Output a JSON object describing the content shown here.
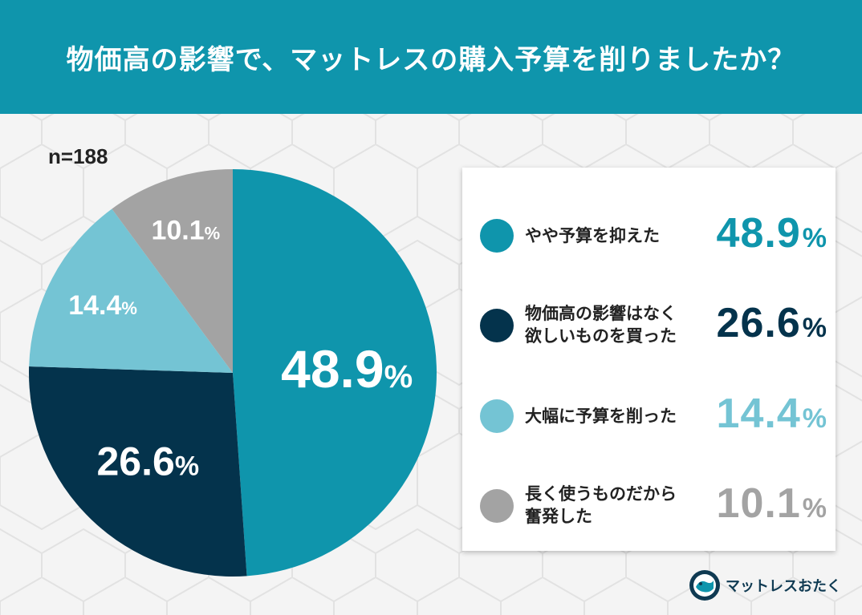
{
  "header": {
    "title": "物価高の影響で、マットレスの購入予算を削りましたか？"
  },
  "sample_size": "n=188",
  "chart_data": {
    "type": "pie",
    "title": "物価高の影響で、マットレスの購入予算を削りましたか？",
    "slices": [
      {
        "label": "やや予算を抑えた",
        "value": 48.9,
        "color": "#0f95ac"
      },
      {
        "label": "物価高の影響はなく欲しいものを買った",
        "value": 26.6,
        "color": "#04334c"
      },
      {
        "label": "大幅に予算を削った",
        "value": 14.4,
        "color": "#74c4d4"
      },
      {
        "label": "長く使うものだから奮発した",
        "value": 10.1,
        "color": "#a3a3a3"
      }
    ],
    "unit": "%",
    "legend_position": "right"
  },
  "pie_labels": [
    {
      "number": "48.9",
      "unit": "%"
    },
    {
      "number": "26.6",
      "unit": "%"
    },
    {
      "number": "14.4",
      "unit": "%"
    },
    {
      "number": "10.1",
      "unit": "%"
    }
  ],
  "legend": [
    {
      "label": "やや予算を抑えた",
      "value": "48.9",
      "unit": "%",
      "color": "#0f95ac"
    },
    {
      "label": "物価高の影響はなく\n欲しいものを買った",
      "value": "26.6",
      "unit": "%",
      "color": "#04334c"
    },
    {
      "label": "大幅に予算を削った",
      "value": "14.4",
      "unit": "%",
      "color": "#74c4d4"
    },
    {
      "label": "長く使うものだから\n奮発した",
      "value": "10.1",
      "unit": "%",
      "color": "#a3a3a3"
    }
  ],
  "brand": {
    "name": "マットレスおたく"
  }
}
